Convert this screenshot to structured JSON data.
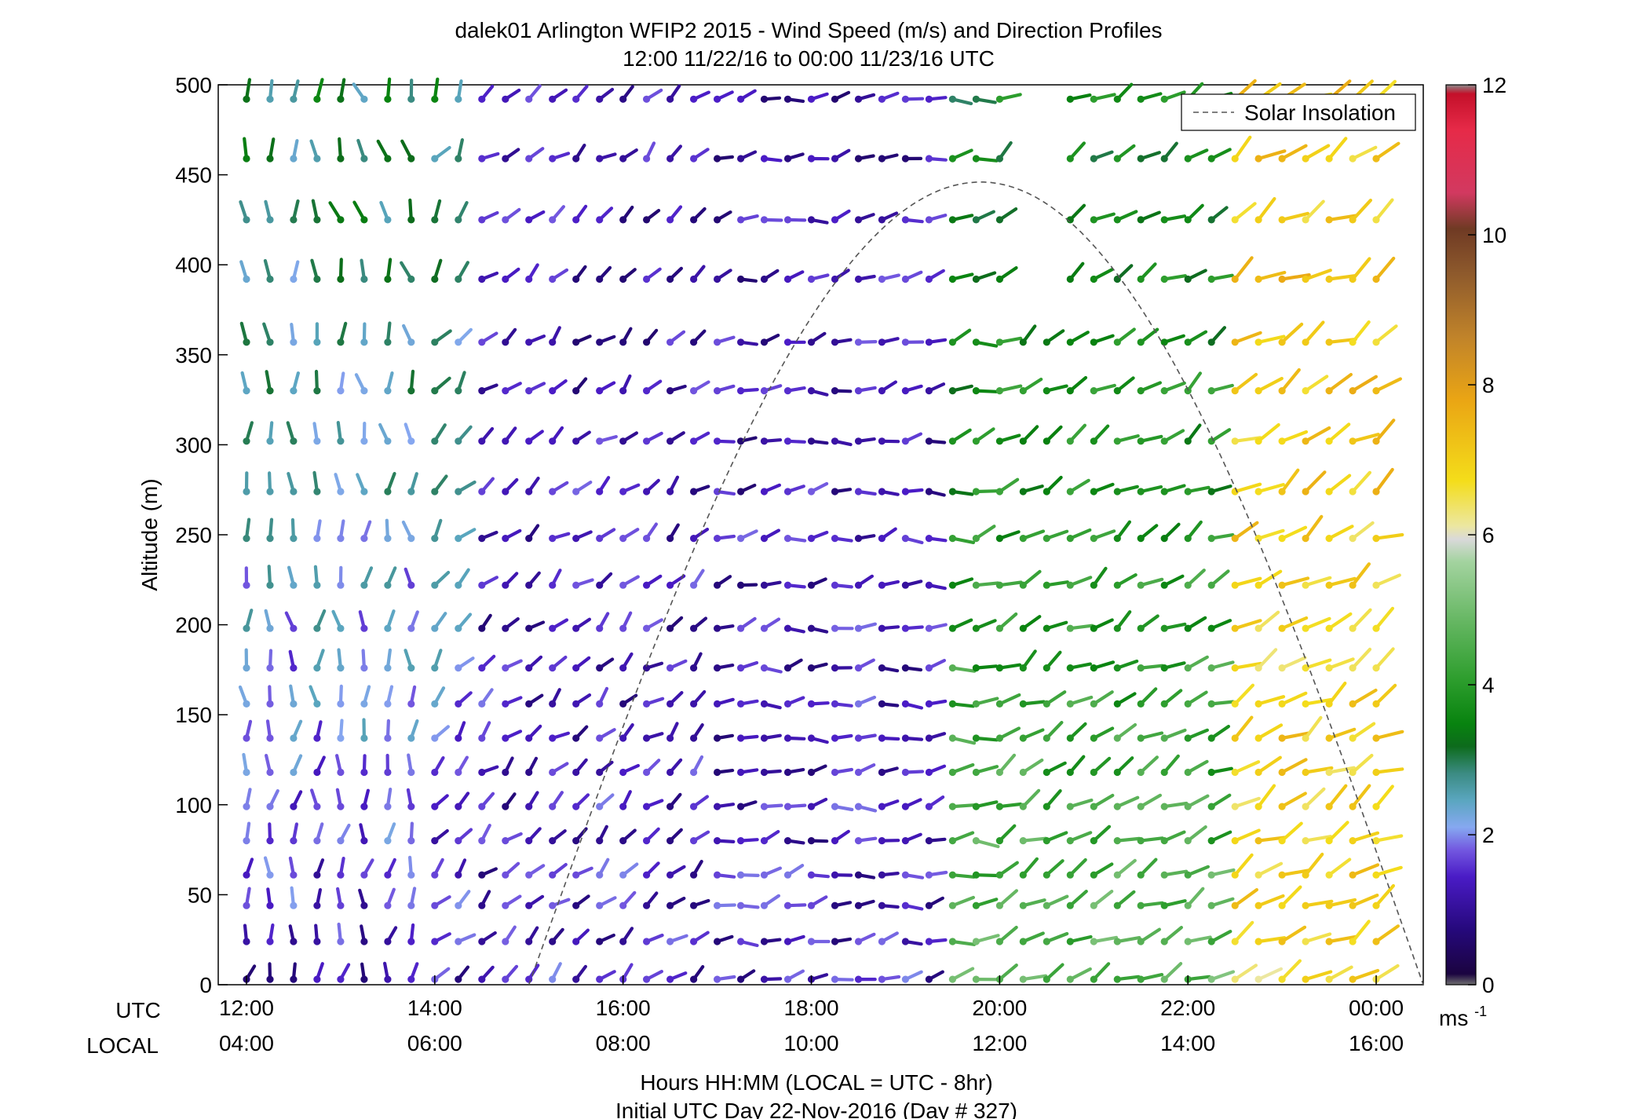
{
  "title": {
    "line1": "dalek01 Arlington WFIP2 2015 - Wind Speed (m/s) and Direction Profiles",
    "line2": "12:00 11/22/16 to 00:00 11/23/16  UTC"
  },
  "axes": {
    "ylabel": "Altitude (m)",
    "xlabel": "Hours HH:MM  (LOCAL = UTC - 8hr)",
    "xlabel2": "Initial UTC Day 22-Nov-2016 (Day # 327)",
    "row_label_utc": "UTC",
    "row_label_local": "LOCAL",
    "y_ticks": [
      "0",
      "50",
      "100",
      "150",
      "200",
      "250",
      "300",
      "350",
      "400",
      "450",
      "500"
    ],
    "x_ticks_utc": [
      "12:00",
      "14:00",
      "16:00",
      "18:00",
      "20:00",
      "22:00",
      "00:00"
    ],
    "x_ticks_local": [
      "04:00",
      "06:00",
      "08:00",
      "10:00",
      "12:00",
      "14:00",
      "16:00"
    ]
  },
  "legend": {
    "label": "Solar Insolation"
  },
  "colorbar": {
    "ticks": [
      "0",
      "2",
      "4",
      "6",
      "8",
      "10",
      "12"
    ],
    "unit": "ms",
    "unit_exp": "-1"
  },
  "chart_data": {
    "type": "wind-barb-profile",
    "x_range_hours_utc": [
      11.7,
      24.5
    ],
    "y_range_m": [
      0,
      500
    ],
    "time_step_minutes": 15,
    "levels_m": [
      3,
      24,
      44,
      61,
      80,
      99,
      118,
      137,
      156,
      176,
      198,
      222,
      248,
      274,
      302,
      330,
      357,
      392,
      425,
      459,
      492
    ],
    "speed_range_ms": [
      0,
      12
    ],
    "solar_insolation_curve": {
      "start_hour": 15.0,
      "peak_hour": 19.8,
      "peak_altitude_m": 446,
      "end_hour": 24.5
    },
    "missing_gap_hours_at_top_levels": [
      20.2,
      20.6
    ],
    "speed_regime_ms": [
      {
        "from_hour": 12.0,
        "to_hour": 14.5,
        "low_levels": 1.3,
        "upper_levels": 3.0
      },
      {
        "from_hour": 14.5,
        "to_hour": 19.5,
        "low_levels": 1.4,
        "upper_levels": 1.2
      },
      {
        "from_hour": 19.5,
        "to_hour": 22.5,
        "low_levels": 4.6,
        "upper_levels": 3.5
      },
      {
        "from_hour": 22.5,
        "to_hour": 24.1,
        "low_levels": 6.8,
        "upper_levels": 7.2
      }
    ],
    "wind_direction_regime_deg": [
      {
        "from_hour": 12.0,
        "to_hour": 14.0,
        "direction": 190
      },
      {
        "from_hour": 14.0,
        "to_hour": 17.0,
        "direction": 230
      },
      {
        "from_hour": 17.0,
        "to_hour": 20.0,
        "direction": 260
      },
      {
        "from_hour": 20.0,
        "to_hour": 24.1,
        "direction": 240
      }
    ]
  }
}
